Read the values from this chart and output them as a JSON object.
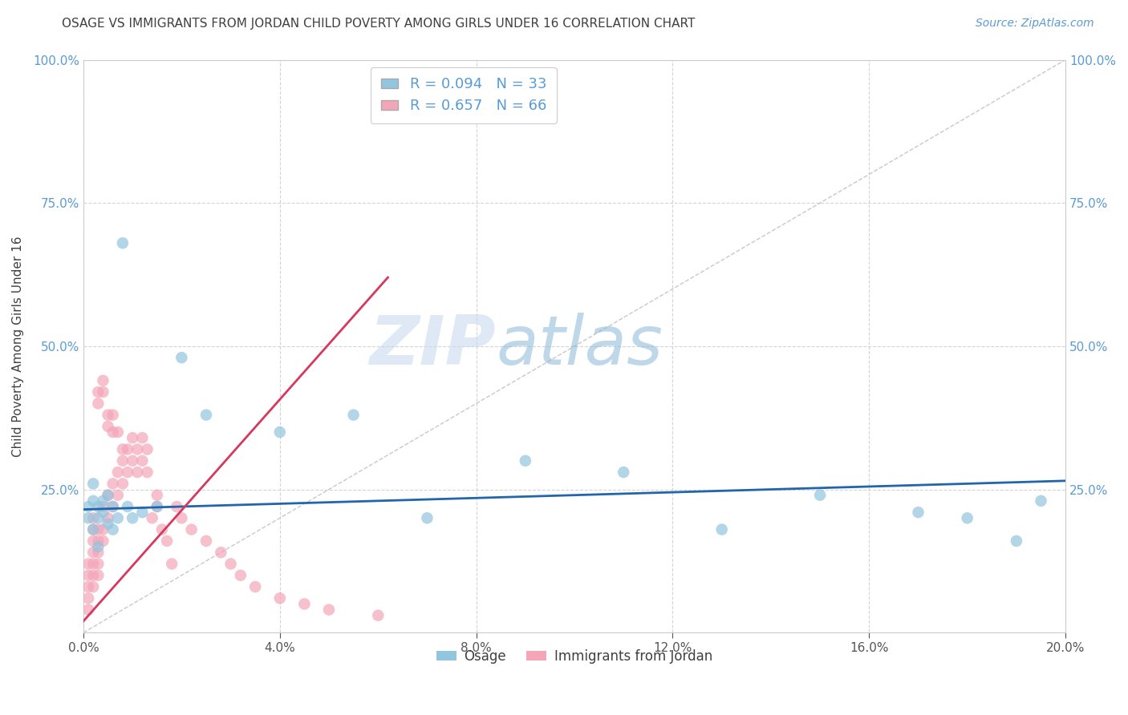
{
  "title": "OSAGE VS IMMIGRANTS FROM JORDAN CHILD POVERTY AMONG GIRLS UNDER 16 CORRELATION CHART",
  "source": "Source: ZipAtlas.com",
  "ylabel": "Child Poverty Among Girls Under 16",
  "legend_r_blue": "R = 0.094",
  "legend_n_blue": "N = 33",
  "legend_r_pink": "R = 0.657",
  "legend_n_pink": "N = 66",
  "blue_color": "#92c5de",
  "pink_color": "#f4a6b8",
  "blue_line_color": "#2166ac",
  "pink_line_color": "#d6395e",
  "diag_color": "#bbbbbb",
  "xlim": [
    0.0,
    0.2
  ],
  "ylim": [
    0.0,
    1.0
  ],
  "xtick_vals": [
    0.0,
    0.04,
    0.08,
    0.12,
    0.16,
    0.2
  ],
  "xtick_labels": [
    "0.0%",
    "4.0%",
    "8.0%",
    "12.0%",
    "16.0%",
    "20.0%"
  ],
  "ytick_vals": [
    0.0,
    0.25,
    0.5,
    0.75,
    1.0
  ],
  "ytick_labels_left": [
    "",
    "25.0%",
    "50.0%",
    "75.0%",
    "100.0%"
  ],
  "ytick_labels_right": [
    "",
    "25.0%",
    "50.0%",
    "75.0%",
    "100.0%"
  ],
  "watermark_zip": "ZIP",
  "watermark_atlas": "atlas",
  "background_color": "#ffffff",
  "grid_color": "#d0d0d0",
  "axis_color": "#5b9bd5",
  "title_color": "#404040",
  "osage_x": [
    0.001,
    0.001,
    0.002,
    0.002,
    0.002,
    0.003,
    0.003,
    0.003,
    0.004,
    0.004,
    0.005,
    0.005,
    0.006,
    0.006,
    0.007,
    0.008,
    0.009,
    0.01,
    0.012,
    0.015,
    0.02,
    0.025,
    0.04,
    0.055,
    0.07,
    0.09,
    0.11,
    0.13,
    0.15,
    0.17,
    0.18,
    0.19,
    0.195
  ],
  "osage_y": [
    0.2,
    0.22,
    0.18,
    0.23,
    0.26,
    0.2,
    0.22,
    0.15,
    0.21,
    0.23,
    0.19,
    0.24,
    0.22,
    0.18,
    0.2,
    0.68,
    0.22,
    0.2,
    0.21,
    0.22,
    0.48,
    0.38,
    0.35,
    0.38,
    0.2,
    0.3,
    0.28,
    0.18,
    0.24,
    0.21,
    0.2,
    0.16,
    0.23
  ],
  "jordan_x": [
    0.001,
    0.001,
    0.001,
    0.001,
    0.001,
    0.002,
    0.002,
    0.002,
    0.002,
    0.002,
    0.002,
    0.002,
    0.003,
    0.003,
    0.003,
    0.003,
    0.003,
    0.003,
    0.003,
    0.004,
    0.004,
    0.004,
    0.004,
    0.004,
    0.005,
    0.005,
    0.005,
    0.005,
    0.006,
    0.006,
    0.006,
    0.006,
    0.007,
    0.007,
    0.007,
    0.008,
    0.008,
    0.008,
    0.009,
    0.009,
    0.01,
    0.01,
    0.011,
    0.011,
    0.012,
    0.012,
    0.013,
    0.013,
    0.014,
    0.015,
    0.015,
    0.016,
    0.017,
    0.018,
    0.019,
    0.02,
    0.022,
    0.025,
    0.028,
    0.03,
    0.032,
    0.035,
    0.04,
    0.045,
    0.05,
    0.06
  ],
  "jordan_y": [
    0.04,
    0.06,
    0.08,
    0.1,
    0.12,
    0.08,
    0.1,
    0.12,
    0.14,
    0.16,
    0.18,
    0.2,
    0.1,
    0.12,
    0.14,
    0.16,
    0.18,
    0.4,
    0.42,
    0.16,
    0.18,
    0.22,
    0.42,
    0.44,
    0.2,
    0.24,
    0.36,
    0.38,
    0.22,
    0.26,
    0.35,
    0.38,
    0.24,
    0.28,
    0.35,
    0.26,
    0.3,
    0.32,
    0.28,
    0.32,
    0.3,
    0.34,
    0.28,
    0.32,
    0.3,
    0.34,
    0.28,
    0.32,
    0.2,
    0.24,
    0.22,
    0.18,
    0.16,
    0.12,
    0.22,
    0.2,
    0.18,
    0.16,
    0.14,
    0.12,
    0.1,
    0.08,
    0.06,
    0.05,
    0.04,
    0.03
  ],
  "blue_line_x0": 0.0,
  "blue_line_x1": 0.2,
  "blue_line_y0": 0.215,
  "blue_line_y1": 0.265,
  "pink_line_x0": 0.0,
  "pink_line_x1": 0.062,
  "pink_line_y0": 0.02,
  "pink_line_y1": 0.62
}
